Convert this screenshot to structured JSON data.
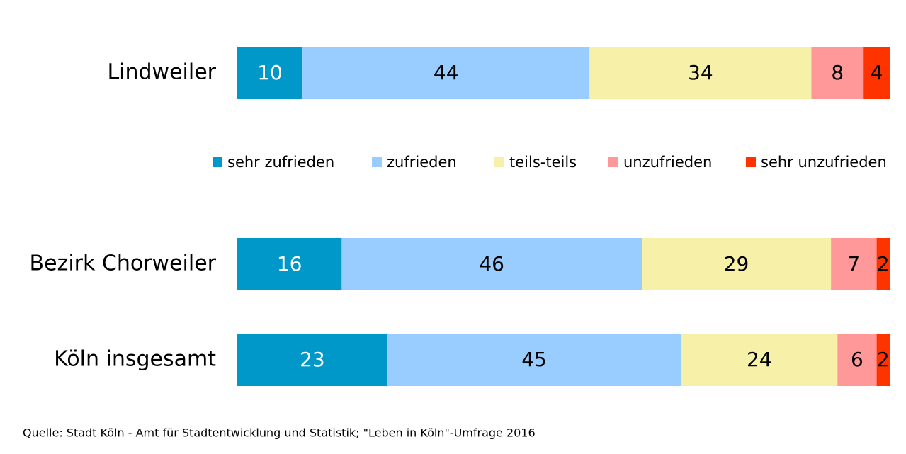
{
  "chart_data": {
    "type": "stacked-bar-horizontal",
    "categories": [
      "Lindweiler",
      "Bezirk Chorweiler",
      "Köln insgesamt"
    ],
    "series": [
      {
        "name": "sehr zufrieden",
        "color": "#0098c8",
        "values": [
          10,
          16,
          23
        ]
      },
      {
        "name": "zufrieden",
        "color": "#99ccff",
        "values": [
          44,
          46,
          45
        ]
      },
      {
        "name": "teils-teils",
        "color": "#f7f0a8",
        "values": [
          34,
          29,
          24
        ]
      },
      {
        "name": "unzufrieden",
        "color": "#ff9999",
        "values": [
          8,
          7,
          6
        ]
      },
      {
        "name": "sehr unzufrieden",
        "color": "#ff3300",
        "values": [
          4,
          2,
          2
        ]
      }
    ],
    "xlim": [
      0,
      100
    ],
    "source": "Quelle: Stadt Köln - Amt für Stadtentwicklung und Statistik; \"Leben in Köln\"-Umfrage 2016"
  }
}
